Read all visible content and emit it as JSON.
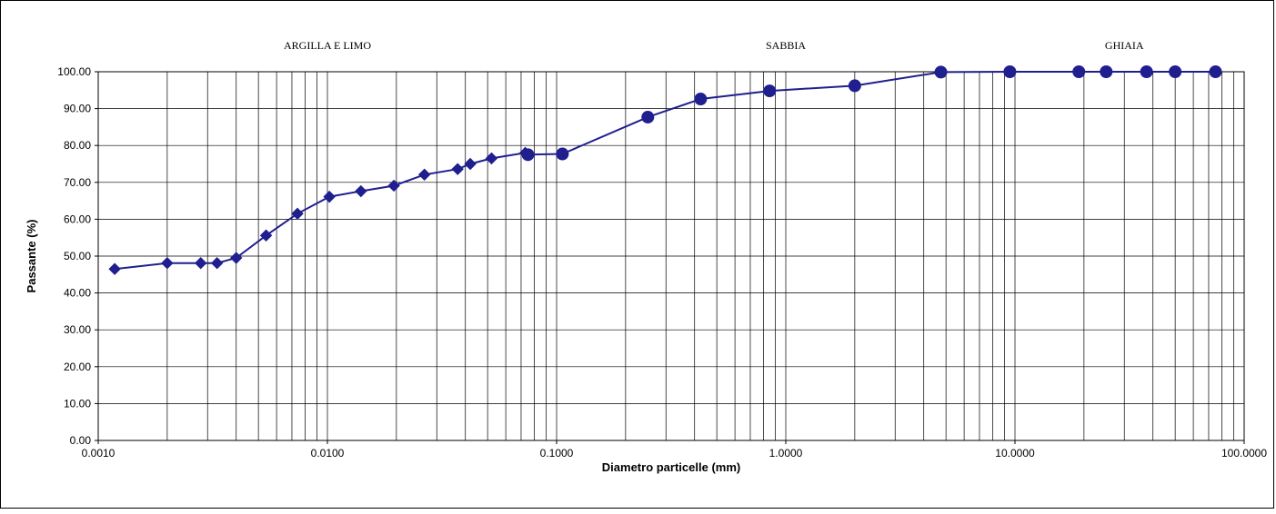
{
  "chart_data": {
    "type": "scatter",
    "title": "",
    "xlabel": "Diametro particelle (mm)",
    "ylabel": "Passante (%)",
    "xscale": "log",
    "xlim": [
      0.001,
      100
    ],
    "ylim": [
      0,
      100
    ],
    "grid": true,
    "legend": "none",
    "x_tick_labels": [
      "0.0010",
      "0.0100",
      "0.1000",
      "1.0000",
      "10.0000",
      "100.0000"
    ],
    "y_tick_labels": [
      "0.00",
      "10.00",
      "20.00",
      "30.00",
      "40.00",
      "50.00",
      "60.00",
      "70.00",
      "80.00",
      "90.00",
      "100.00"
    ],
    "zone_labels": [
      {
        "text": "ARGILLA E LIMO",
        "x": 0.01
      },
      {
        "text": "SABBIA",
        "x": 1.0
      },
      {
        "text": "GHIAIA",
        "x": 30
      }
    ],
    "line_color": "#1f1f8f",
    "marker_color": "#1f1f8f",
    "series": [
      {
        "marker": "diamond",
        "x": [
          0.00118,
          0.002,
          0.0028,
          0.0033,
          0.004,
          0.0054,
          0.0074,
          0.0102,
          0.014,
          0.0195,
          0.0265,
          0.037,
          0.042,
          0.052,
          0.073
        ],
        "values": [
          46.5,
          48.1,
          48.1,
          48.1,
          49.5,
          55.6,
          61.5,
          66.1,
          67.6,
          69.1,
          72.1,
          73.6,
          75.0,
          76.5,
          78.0
        ]
      },
      {
        "marker": "circle",
        "x": [
          0.075,
          0.106,
          0.25,
          0.425,
          0.85,
          2.0,
          4.75,
          9.5,
          19.0,
          25.0,
          37.5,
          50.0,
          75.0
        ],
        "values": [
          77.5,
          77.7,
          87.7,
          92.6,
          94.8,
          96.2,
          99.9,
          100,
          100,
          100,
          100,
          100,
          100
        ]
      }
    ]
  }
}
